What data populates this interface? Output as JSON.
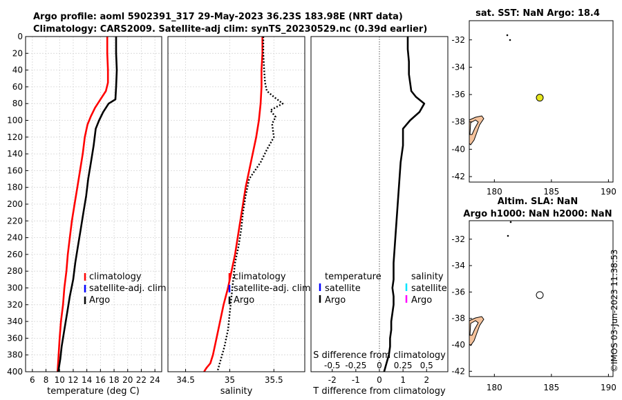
{
  "chart_data": [
    {
      "id": "temperature",
      "type": "line",
      "title": [
        "Argo profile: aoml 5902391_317 29-May-2023 36.23S 183.98E (NRT data)",
        "Climatology: CARS2009. Satellite-adj clim: synTS_20230529.nc (0.39d earlier)"
      ],
      "xlabel": "temperature (deg C)",
      "ylabel": "",
      "xlim": [
        5,
        25
      ],
      "ylim": [
        400,
        0
      ],
      "xticks": [
        "6",
        "8",
        "10",
        "12",
        "14",
        "16",
        "18",
        "20",
        "22",
        "24"
      ],
      "yticks": [
        "0",
        "20",
        "40",
        "60",
        "80",
        "100",
        "120",
        "140",
        "160",
        "180",
        "200",
        "220",
        "240",
        "260",
        "280",
        "300",
        "320",
        "340",
        "360",
        "380",
        "400"
      ],
      "grid": true,
      "legend": [
        "climatology",
        "satellite-adj. clim",
        "Argo"
      ],
      "series": [
        {
          "name": "climatology",
          "color": "#ff0000",
          "style": "solid",
          "x": [
            17.0,
            17.0,
            17.1,
            17.1,
            16.8,
            16.0,
            15.2,
            14.6,
            14.1,
            13.7,
            13.4,
            13.0,
            12.6,
            12.2,
            11.8,
            11.5,
            11.2,
            11.0,
            10.7,
            10.5,
            10.2,
            10.0,
            9.7
          ],
          "y": [
            0,
            20,
            40,
            55,
            65,
            75,
            85,
            95,
            105,
            120,
            140,
            160,
            180,
            200,
            220,
            240,
            260,
            280,
            300,
            320,
            340,
            360,
            400
          ]
        },
        {
          "name": "Argo",
          "color": "#000000",
          "style": "solid",
          "x": [
            18.3,
            18.3,
            18.4,
            18.3,
            18.2,
            17.2,
            16.4,
            15.8,
            15.3,
            15.0,
            14.6,
            14.2,
            13.9,
            13.5,
            13.1,
            12.7,
            12.3,
            12.0,
            11.5,
            11.1,
            10.7,
            10.3,
            10.1,
            9.8
          ],
          "y": [
            0,
            20,
            40,
            60,
            75,
            80,
            90,
            100,
            110,
            130,
            150,
            170,
            190,
            210,
            230,
            250,
            270,
            290,
            310,
            330,
            350,
            370,
            385,
            400
          ]
        }
      ]
    },
    {
      "id": "salinity",
      "type": "line",
      "xlabel": "salinity",
      "xlim": [
        34.3,
        35.85
      ],
      "ylim": [
        400,
        0
      ],
      "xticks": [
        "34.5",
        "35",
        "35.5"
      ],
      "grid": true,
      "legend": [
        "climatology",
        "satellite-adj. clim",
        "Argo"
      ],
      "series": [
        {
          "name": "climatology",
          "color": "#ff0000",
          "style": "solid",
          "x": [
            35.37,
            35.37,
            35.36,
            35.36,
            35.35,
            35.33,
            35.3,
            35.26,
            35.22,
            35.18,
            35.15,
            35.12,
            35.09,
            35.06,
            35.02,
            34.98,
            34.93,
            34.89,
            34.85,
            34.81,
            34.78,
            34.74,
            34.72,
            34.71
          ],
          "y": [
            0,
            20,
            40,
            60,
            80,
            100,
            120,
            140,
            160,
            180,
            200,
            220,
            240,
            260,
            280,
            300,
            320,
            340,
            360,
            380,
            390,
            395,
            398,
            400
          ]
        },
        {
          "name": "Argo",
          "color": "#000000",
          "style": "dotted",
          "x": [
            35.38,
            35.38,
            35.39,
            35.4,
            35.42,
            35.5,
            35.6,
            35.46,
            35.52,
            35.48,
            35.5,
            35.42,
            35.35,
            35.22,
            35.18,
            35.15,
            35.13,
            35.1,
            35.06,
            35.04,
            35.02,
            35.0,
            34.98,
            34.96,
            34.94,
            34.9,
            34.86
          ],
          "y": [
            0,
            20,
            40,
            55,
            65,
            72,
            80,
            88,
            96,
            104,
            120,
            135,
            150,
            170,
            190,
            210,
            230,
            250,
            270,
            290,
            310,
            330,
            350,
            360,
            370,
            385,
            400
          ]
        }
      ]
    },
    {
      "id": "difference",
      "type": "line",
      "xlabel": "T difference from climatology",
      "s_axis_label": "S difference from climatology",
      "xlim": [
        -2.9,
        2.9
      ],
      "s_xlim": [
        -0.725,
        0.725
      ],
      "ylim": [
        400,
        0
      ],
      "xticks": [
        "-2",
        "-1",
        "0",
        "1",
        "2"
      ],
      "s_xticks": [
        "-0.5",
        "-0.25",
        "0",
        "0.25",
        "0.5"
      ],
      "grid": false,
      "legend_temperature": [
        "temperature",
        "satellite",
        "Argo"
      ],
      "legend_salinity": [
        "salinity",
        "satellite",
        "Argo"
      ],
      "series": [
        {
          "name": "Argo T difference",
          "color": "#000000",
          "style": "solid",
          "x": [
            1.2,
            1.2,
            1.25,
            1.25,
            1.3,
            1.35,
            1.55,
            1.9,
            1.7,
            1.3,
            1.0,
            1.0,
            0.9,
            0.85,
            0.8,
            0.75,
            0.7,
            0.65,
            0.6,
            0.6,
            0.6,
            0.55,
            0.6,
            0.6,
            0.55,
            0.5,
            0.5,
            0.45,
            0.45,
            0.4,
            0.35,
            0.3,
            0.25,
            0.2
          ],
          "y": [
            0,
            15,
            30,
            45,
            55,
            65,
            72,
            80,
            90,
            100,
            110,
            130,
            150,
            170,
            190,
            210,
            230,
            250,
            270,
            285,
            290,
            300,
            310,
            320,
            330,
            340,
            350,
            360,
            370,
            380,
            385,
            390,
            395,
            400
          ]
        }
      ]
    },
    {
      "id": "map-sst",
      "type": "scatter",
      "title": "sat. SST: NaN Argo: 18.4",
      "xlim": [
        177.8,
        190.4
      ],
      "ylim": [
        -42.4,
        -30.6
      ],
      "xticks": [
        "180",
        "185",
        "190"
      ],
      "yticks": [
        "-32",
        "-34",
        "-36",
        "-38",
        "-40",
        "-42"
      ],
      "points": [
        {
          "x": 183.98,
          "y": -36.23,
          "label": "Argo",
          "color": "#e6e61e"
        }
      ]
    },
    {
      "id": "map-sla",
      "type": "scatter",
      "title": [
        "Altim. SLA: NaN",
        "Argo h1000: NaN h2000: NaN"
      ],
      "xlim": [
        177.8,
        190.4
      ],
      "ylim": [
        -42.4,
        -30.6
      ],
      "xticks": [
        "180",
        "185",
        "190"
      ],
      "yticks": [
        "-32",
        "-34",
        "-36",
        "-38",
        "-40",
        "-42"
      ],
      "points": [
        {
          "x": 183.98,
          "y": -36.23,
          "label": "Argo",
          "color": "#ffffff"
        }
      ]
    }
  ],
  "credit": "©IMOS 03-Jun-2023 11:38:53"
}
